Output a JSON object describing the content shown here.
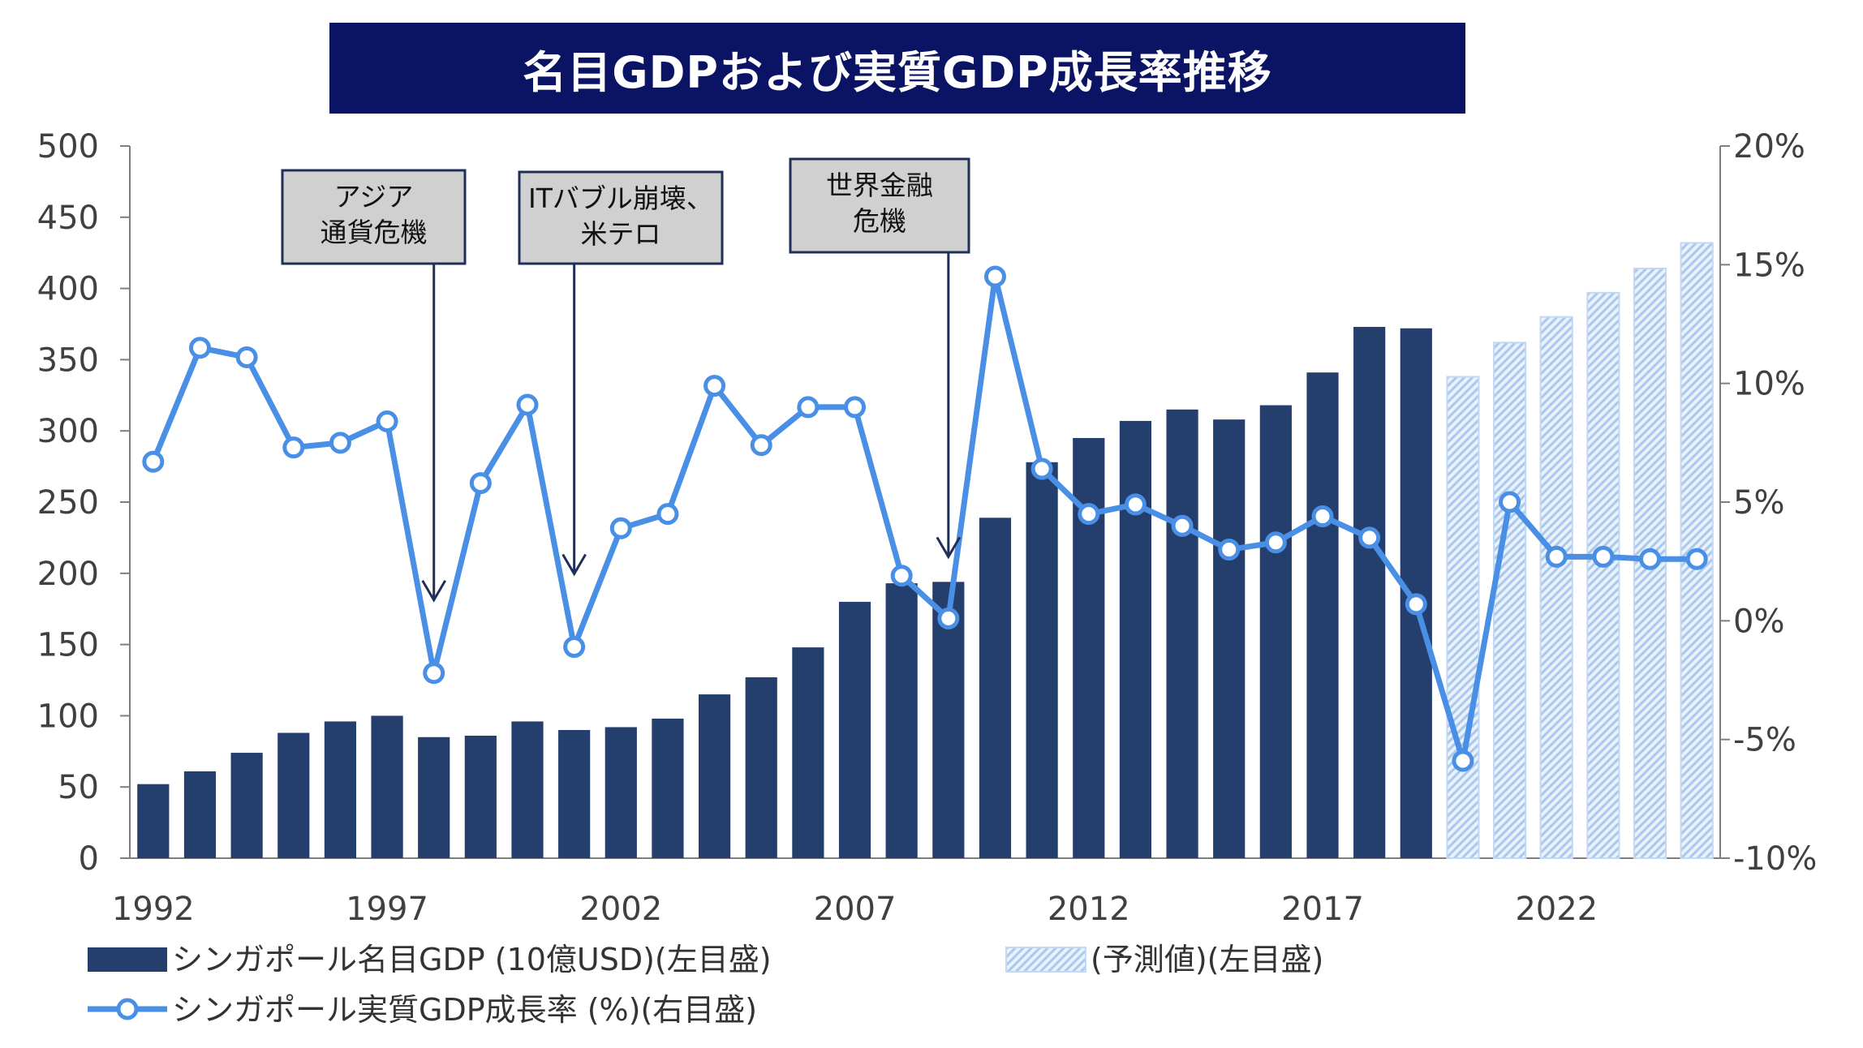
{
  "title": "名目GDPおよび実質GDP成長率推移",
  "chart_data": {
    "type": "bar",
    "years": [
      1992,
      1993,
      1994,
      1995,
      1996,
      1997,
      1998,
      1999,
      2000,
      2001,
      2002,
      2003,
      2004,
      2005,
      2006,
      2007,
      2008,
      2009,
      2010,
      2011,
      2012,
      2013,
      2014,
      2015,
      2016,
      2017,
      2018,
      2019,
      2020,
      2021,
      2022,
      2023,
      2024,
      2025
    ],
    "x_tick_labels": [
      "1992",
      "1997",
      "2002",
      "2007",
      "2012",
      "2017",
      "2022"
    ],
    "left_axis": {
      "ticks": [
        "0",
        "50",
        "100",
        "150",
        "200",
        "250",
        "300",
        "350",
        "400",
        "450",
        "500"
      ],
      "min": 0,
      "max": 500
    },
    "right_axis": {
      "ticks": [
        "-10%",
        "-5%",
        "0%",
        "5%",
        "10%",
        "15%",
        "20%"
      ],
      "min": -10,
      "max": 20
    },
    "series": [
      {
        "name": "シンガポール名目GDP (10億USD)(左目盛)",
        "kind": "bar",
        "color": "#243f6e",
        "values": [
          52,
          61,
          74,
          88,
          96,
          100,
          85,
          86,
          96,
          90,
          92,
          98,
          115,
          127,
          148,
          180,
          193,
          194,
          239,
          278,
          295,
          307,
          315,
          308,
          318,
          341,
          373,
          372,
          null,
          null,
          null,
          null,
          null,
          null
        ]
      },
      {
        "name": "(予測値)(左目盛)",
        "kind": "bar-hatched",
        "color": "#a9c8ee",
        "values": [
          null,
          null,
          null,
          null,
          null,
          null,
          null,
          null,
          null,
          null,
          null,
          null,
          null,
          null,
          null,
          null,
          null,
          null,
          null,
          null,
          null,
          null,
          null,
          null,
          null,
          null,
          null,
          null,
          338,
          362,
          380,
          397,
          414,
          432
        ]
      },
      {
        "name": "シンガポール実質GDP成長率 (%)(右目盛)",
        "kind": "line",
        "axis": "right",
        "color": "#4a8fe6",
        "values": [
          6.7,
          11.5,
          11.1,
          7.3,
          7.5,
          8.4,
          -2.2,
          5.8,
          9.1,
          -1.1,
          3.9,
          4.5,
          9.9,
          7.4,
          9.0,
          9.0,
          1.9,
          0.1,
          14.5,
          6.4,
          4.5,
          4.9,
          4.0,
          3.0,
          3.3,
          4.4,
          3.5,
          0.7,
          -5.9,
          5.0,
          2.7,
          2.7,
          2.6,
          2.6
        ]
      }
    ],
    "annotations": [
      {
        "label": "アジア\n通貨危機",
        "year": 1998
      },
      {
        "label": "ITバブル崩壊、\n米テロ",
        "year": 2001
      },
      {
        "label": "世界金融\n危機",
        "year": 2009
      }
    ]
  }
}
